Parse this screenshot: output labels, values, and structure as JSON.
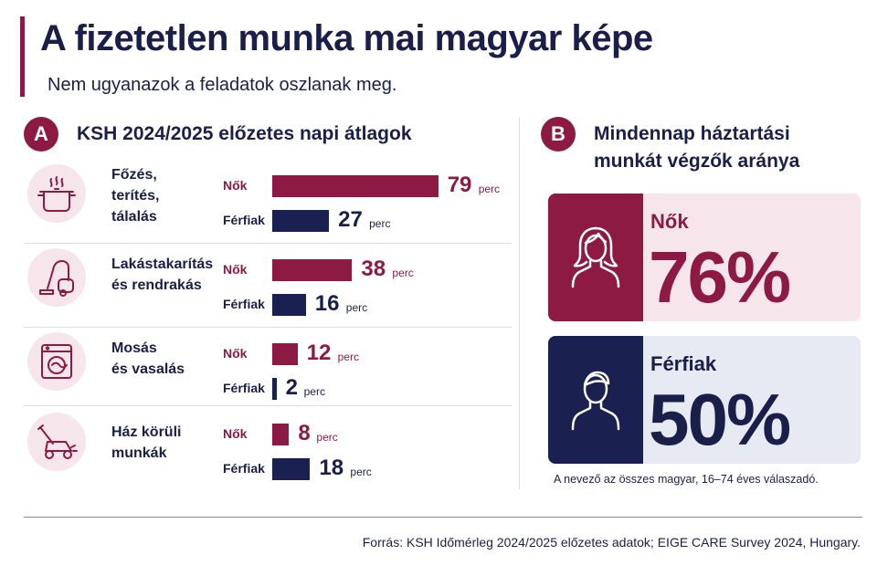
{
  "header": {
    "title": "A fizetetlen munka mai magyar képe",
    "subtitle": "Nem ugyanazok a feladatok oszlanak meg."
  },
  "section_a": {
    "badge": "A",
    "title": "KSH 2024/2025 előzetes napi átlagok"
  },
  "section_b": {
    "badge": "B",
    "title_line1": "Mindennap háztartási",
    "title_line2": "munkát végzők aránya",
    "note": "A nevező az összes magyar, 16–74 éves válaszadó."
  },
  "labels": {
    "female": "Nők",
    "male": "Férfiak",
    "unit": "perc"
  },
  "icons": [
    "cooking-pot-icon",
    "vacuum-cleaner-icon",
    "washing-machine-icon",
    "lawn-mower-icon"
  ],
  "colors": {
    "female": "#8c1a43",
    "male": "#1a2151",
    "female_bg": "#f6e6ec",
    "male_bg": "#e7e9f3"
  },
  "footer": {
    "source": "Forrás: KSH Időmérleg 2024/2025 előzetes adatok; EIGE CARE Survey 2024, Hungary."
  },
  "chart_data": [
    {
      "type": "bar",
      "orientation": "horizontal",
      "unit": "perc",
      "categories": [
        [
          "Főzés,",
          "terítés,",
          "tálalás"
        ],
        [
          "Lakástakarítás",
          "és rendrakás"
        ],
        [
          "Mosás",
          "és vasalás"
        ],
        [
          "Ház körüli",
          "munkák"
        ]
      ],
      "series": [
        {
          "name": "Nők",
          "values": [
            79,
            38,
            12,
            8
          ]
        },
        {
          "name": "Férfiak",
          "values": [
            27,
            16,
            2,
            18
          ]
        }
      ]
    },
    {
      "type": "table",
      "rows": [
        {
          "label": "Nők",
          "display": "76%",
          "value": 76
        },
        {
          "label": "Férfiak",
          "display": "50%",
          "value": 50
        }
      ]
    }
  ]
}
